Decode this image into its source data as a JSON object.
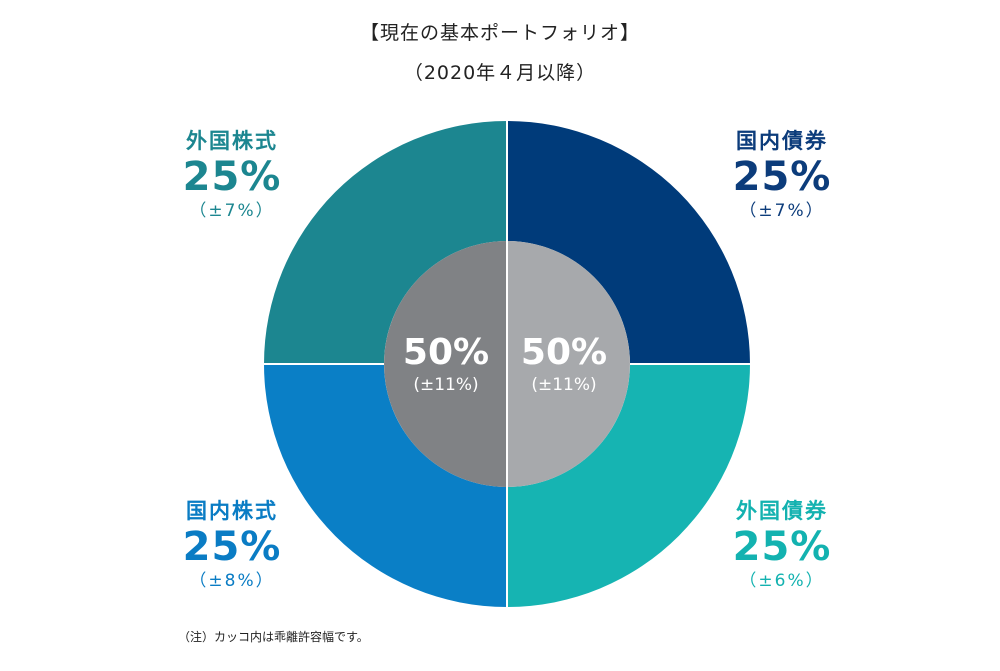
{
  "title_line1": "【現在の基本ポートフォリオ】",
  "title_line2": "（2020年４月以降）",
  "chart_data": {
    "type": "pie",
    "title": "【現在の基本ポートフォリオ】",
    "subtitle": "（2020年４月以降）",
    "outer_ring": [
      {
        "name": "国内債券",
        "value": 25,
        "range": "（±7%）",
        "color": "#003b7a"
      },
      {
        "name": "外国債券",
        "value": 25,
        "range": "（±6%）",
        "color": "#16b4b2"
      },
      {
        "name": "国内株式",
        "value": 25,
        "range": "（±8%）",
        "color": "#0a7fc6"
      },
      {
        "name": "外国株式",
        "value": 25,
        "range": "（±7%）",
        "color": "#1c8690"
      }
    ],
    "inner_ring": [
      {
        "value": 50,
        "range": "(±11%)",
        "color": "#a7a9ac"
      },
      {
        "value": 50,
        "range": "(±11%)",
        "color": "#808285"
      }
    ]
  },
  "labels": {
    "top_left": {
      "name": "外国株式",
      "value": "25%",
      "range": "（±7%）"
    },
    "top_right": {
      "name": "国内債券",
      "value": "25%",
      "range": "（±7%）"
    },
    "bottom_left": {
      "name": "国内株式",
      "value": "25%",
      "range": "（±8%）"
    },
    "bottom_right": {
      "name": "外国債券",
      "value": "25%",
      "range": "（±6%）"
    }
  },
  "inner_labels": {
    "left": {
      "value": "50%",
      "range": "(±11%)"
    },
    "right": {
      "value": "50%",
      "range": "(±11%)"
    }
  },
  "note": "（注）カッコ内は乖離許容幅です。"
}
